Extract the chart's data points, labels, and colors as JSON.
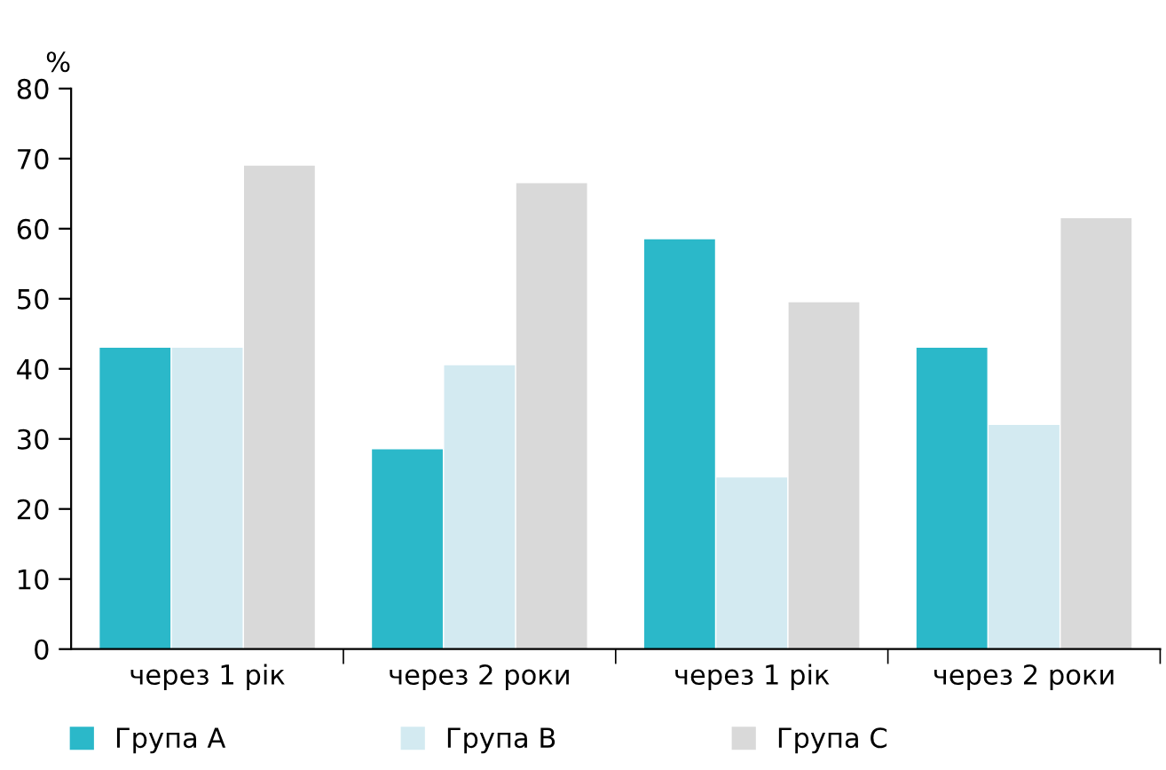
{
  "chart_data": {
    "type": "bar",
    "ylabel": "%",
    "categories": [
      "через 1 рік",
      "через 2 роки",
      "через 1 рік",
      "через 2 роки"
    ],
    "series": [
      {
        "name": "Група A",
        "color": "#2bb8c9",
        "values": [
          43,
          28.5,
          58.5,
          43
        ]
      },
      {
        "name": "Група B",
        "color": "#d3eaf1",
        "values": [
          43,
          40.5,
          24.5,
          32
        ]
      },
      {
        "name": "Група C",
        "color": "#d9d9d9",
        "values": [
          69,
          66.5,
          49.5,
          61.5
        ]
      }
    ],
    "ylim": [
      0,
      80
    ],
    "yticks": [
      0,
      10,
      20,
      30,
      40,
      50,
      60,
      70,
      80
    ],
    "grid": false,
    "legend": "bottom"
  }
}
